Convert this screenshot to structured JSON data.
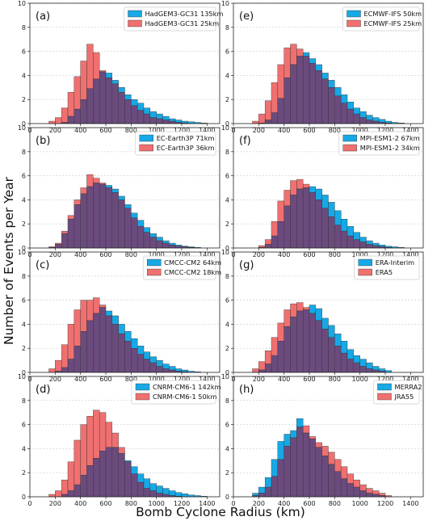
{
  "figure": {
    "xlabel": "Bomb Cyclone Radius (km)",
    "ylabel": "Number of Events per Year"
  },
  "colors": {
    "series1": "#16a9e6",
    "series2": "#f07070",
    "overlap": "#6b4b7e"
  },
  "chart_data": [
    {
      "type": "bar",
      "panel": "(a)",
      "xlim": [
        0,
        1500
      ],
      "ylim": [
        0,
        10
      ],
      "bin_width": 50,
      "grid": true,
      "legend": "top-right",
      "bin_start": [
        150,
        200,
        250,
        300,
        350,
        400,
        450,
        500,
        550,
        600,
        650,
        700,
        750,
        800,
        850,
        900,
        950,
        1000,
        1050,
        1100,
        1150,
        1200,
        1250,
        1300,
        1350,
        1400
      ],
      "xticks": [
        0,
        200,
        400,
        600,
        800,
        1000,
        1200,
        1400
      ],
      "yticks": [
        0,
        2,
        4,
        6,
        8,
        10
      ],
      "series": [
        {
          "name": "HadGEM3-GC31 135km",
          "values": [
            0,
            0,
            0.1,
            0.6,
            1.2,
            2.0,
            2.9,
            3.7,
            4.3,
            4.2,
            3.6,
            3.0,
            2.4,
            2.0,
            1.7,
            1.3,
            1.0,
            0.8,
            0.6,
            0.4,
            0.3,
            0.2,
            0.15,
            0.1,
            0.05,
            0
          ]
        },
        {
          "name": "HadGEM3-GC31 25km",
          "values": [
            0.2,
            0.5,
            1.3,
            2.6,
            3.9,
            5.2,
            6.6,
            5.9,
            4.4,
            3.8,
            3.3,
            2.6,
            2.0,
            1.5,
            1.1,
            0.8,
            0.5,
            0.4,
            0.3,
            0.2,
            0.1,
            0.05,
            0,
            0,
            0,
            0
          ]
        }
      ]
    },
    {
      "type": "bar",
      "panel": "(e)",
      "xlim": [
        0,
        1500
      ],
      "ylim": [
        0,
        10
      ],
      "bin_width": 50,
      "grid": true,
      "legend": "top-right",
      "bin_start": [
        150,
        200,
        250,
        300,
        350,
        400,
        450,
        500,
        550,
        600,
        650,
        700,
        750,
        800,
        850,
        900,
        950,
        1000,
        1050,
        1100,
        1150,
        1200,
        1250,
        1300,
        1350,
        1400
      ],
      "xticks": [
        0,
        200,
        400,
        600,
        800,
        1000,
        1200,
        1400
      ],
      "yticks": [
        0,
        2,
        4,
        6,
        8,
        10
      ],
      "series": [
        {
          "name": "ECMWF-IFS 50km",
          "values": [
            0,
            0.05,
            0.3,
            0.9,
            2.1,
            3.8,
            4.9,
            5.6,
            5.9,
            5.4,
            4.9,
            4.2,
            3.6,
            3.0,
            2.4,
            1.8,
            1.3,
            1.0,
            0.7,
            0.5,
            0.35,
            0.2,
            0.1,
            0.05,
            0,
            0
          ]
        },
        {
          "name": "ECMWF-IFS 25km",
          "values": [
            0.2,
            0.8,
            1.9,
            3.4,
            4.9,
            6.3,
            6.6,
            6.2,
            5.6,
            5.0,
            4.4,
            3.7,
            3.0,
            2.3,
            1.7,
            1.2,
            0.8,
            0.5,
            0.3,
            0.2,
            0.1,
            0.05,
            0,
            0,
            0,
            0
          ]
        }
      ]
    },
    {
      "type": "bar",
      "panel": "(b)",
      "xlim": [
        0,
        1500
      ],
      "ylim": [
        0,
        10
      ],
      "bin_width": 50,
      "grid": true,
      "legend": "top-right",
      "bin_start": [
        150,
        200,
        250,
        300,
        350,
        400,
        450,
        500,
        550,
        600,
        650,
        700,
        750,
        800,
        850,
        900,
        950,
        1000,
        1050,
        1100,
        1150,
        1200,
        1250,
        1300,
        1350,
        1400
      ],
      "xticks": [
        0,
        200,
        400,
        600,
        800,
        1000,
        1200,
        1400
      ],
      "yticks": [
        0,
        2,
        4,
        6,
        8,
        10
      ],
      "series": [
        {
          "name": "EC-Earth3P 71km",
          "values": [
            0.05,
            0.3,
            1.2,
            2.4,
            3.6,
            4.5,
            5.1,
            5.4,
            5.3,
            5.2,
            4.9,
            4.3,
            3.6,
            2.9,
            2.3,
            1.7,
            1.2,
            0.9,
            0.6,
            0.4,
            0.25,
            0.15,
            0.1,
            0.05,
            0,
            0
          ]
        },
        {
          "name": "EC-Earth3P 36km",
          "values": [
            0.1,
            0.4,
            1.4,
            2.7,
            4.0,
            5.0,
            6.1,
            5.8,
            5.4,
            5.0,
            4.6,
            4.0,
            3.3,
            2.5,
            1.8,
            1.3,
            0.9,
            0.6,
            0.4,
            0.25,
            0.15,
            0.1,
            0.05,
            0,
            0,
            0
          ]
        }
      ]
    },
    {
      "type": "bar",
      "panel": "(f)",
      "xlim": [
        0,
        1500
      ],
      "ylim": [
        0,
        10
      ],
      "bin_width": 50,
      "grid": true,
      "legend": "top-right",
      "bin_start": [
        150,
        200,
        250,
        300,
        350,
        400,
        450,
        500,
        550,
        600,
        650,
        700,
        750,
        800,
        850,
        900,
        950,
        1000,
        1050,
        1100,
        1150,
        1200,
        1250,
        1300,
        1350,
        1400
      ],
      "xticks": [
        0,
        200,
        400,
        600,
        800,
        1000,
        1200,
        1400
      ],
      "yticks": [
        0,
        2,
        4,
        6,
        8,
        10
      ],
      "series": [
        {
          "name": "MPI-ESM1-2 67km",
          "values": [
            0,
            0.05,
            0.3,
            1.0,
            2.2,
            3.5,
            4.4,
            4.9,
            5.0,
            5.1,
            4.9,
            4.4,
            3.8,
            3.1,
            2.4,
            1.8,
            1.3,
            0.9,
            0.6,
            0.4,
            0.25,
            0.15,
            0.1,
            0.05,
            0,
            0
          ]
        },
        {
          "name": "MPI-ESM1-2 34km",
          "values": [
            0,
            0.2,
            0.7,
            2.2,
            3.9,
            4.8,
            5.6,
            5.7,
            5.3,
            4.6,
            4.0,
            3.3,
            2.6,
            1.9,
            1.4,
            1.0,
            0.7,
            0.5,
            0.3,
            0.2,
            0.1,
            0.05,
            0,
            0,
            0,
            0
          ]
        }
      ]
    },
    {
      "type": "bar",
      "panel": "(c)",
      "xlim": [
        0,
        1500
      ],
      "ylim": [
        0,
        10
      ],
      "bin_width": 50,
      "grid": true,
      "legend": "top-right",
      "bin_start": [
        150,
        200,
        250,
        300,
        350,
        400,
        450,
        500,
        550,
        600,
        650,
        700,
        750,
        800,
        850,
        900,
        950,
        1000,
        1050,
        1100,
        1150,
        1200,
        1250,
        1300,
        1350,
        1400
      ],
      "xticks": [
        0,
        200,
        400,
        600,
        800,
        1000,
        1200,
        1400
      ],
      "yticks": [
        0,
        2,
        4,
        6,
        8,
        10
      ],
      "series": [
        {
          "name": "CMCC-CM2 64km",
          "values": [
            0,
            0.1,
            0.4,
            1.1,
            2.2,
            3.4,
            4.3,
            4.9,
            5.4,
            5.1,
            4.7,
            4.0,
            3.4,
            2.8,
            2.2,
            1.7,
            1.3,
            1.0,
            0.7,
            0.5,
            0.3,
            0.2,
            0.1,
            0.05,
            0,
            0
          ]
        },
        {
          "name": "CMCC-CM2 18km",
          "values": [
            0.3,
            1.0,
            2.3,
            4.0,
            5.2,
            6.0,
            6.0,
            6.2,
            5.6,
            4.7,
            4.0,
            3.2,
            2.6,
            2.0,
            1.5,
            1.1,
            0.8,
            0.5,
            0.3,
            0.2,
            0.1,
            0.05,
            0,
            0,
            0,
            0
          ]
        }
      ]
    },
    {
      "type": "bar",
      "panel": "(g)",
      "xlim": [
        0,
        1500
      ],
      "ylim": [
        0,
        10
      ],
      "bin_width": 50,
      "grid": true,
      "legend": "top-right",
      "bin_start": [
        150,
        200,
        250,
        300,
        350,
        400,
        450,
        500,
        550,
        600,
        650,
        700,
        750,
        800,
        850,
        900,
        950,
        1000,
        1050,
        1100,
        1150,
        1200,
        1250,
        1300,
        1350,
        1400
      ],
      "xticks": [
        0,
        200,
        400,
        600,
        800,
        1000,
        1200,
        1400
      ],
      "yticks": [
        0,
        2,
        4,
        6,
        8,
        10
      ],
      "series": [
        {
          "name": "ERA-Interim",
          "values": [
            0,
            0.2,
            0.7,
            1.4,
            2.6,
            3.8,
            4.6,
            5.1,
            5.2,
            5.6,
            5.3,
            4.5,
            3.9,
            3.2,
            2.6,
            1.9,
            1.4,
            1.1,
            0.8,
            0.5,
            0.3,
            0.15,
            0,
            0,
            0,
            0
          ]
        },
        {
          "name": "ERA5",
          "values": [
            0.3,
            0.9,
            1.8,
            2.9,
            4.1,
            5.2,
            5.7,
            5.8,
            5.4,
            4.9,
            4.3,
            3.6,
            2.9,
            2.2,
            1.6,
            1.1,
            0.8,
            0.5,
            0.3,
            0.2,
            0.1,
            0,
            0,
            0,
            0,
            0
          ]
        }
      ]
    },
    {
      "type": "bar",
      "panel": "(d)",
      "xlim": [
        0,
        1500
      ],
      "ylim": [
        0,
        10
      ],
      "bin_width": 50,
      "grid": true,
      "legend": "top-right",
      "bin_start": [
        150,
        200,
        250,
        300,
        350,
        400,
        450,
        500,
        550,
        600,
        650,
        700,
        750,
        800,
        850,
        900,
        950,
        1000,
        1050,
        1100,
        1150,
        1200,
        1250,
        1300,
        1350,
        1400
      ],
      "xticks": [
        0,
        200,
        400,
        600,
        800,
        1000,
        1200,
        1400
      ],
      "yticks": [
        0,
        2,
        4,
        6,
        8,
        10
      ],
      "series": [
        {
          "name": "CNRM-CM6-1 142km",
          "values": [
            0,
            0,
            0.2,
            0.5,
            1.0,
            1.8,
            2.6,
            3.2,
            3.8,
            4.1,
            4.1,
            3.6,
            3.0,
            2.5,
            1.9,
            1.5,
            1.1,
            0.9,
            0.7,
            0.5,
            0.35,
            0.25,
            0.15,
            0.1,
            0.05,
            0
          ]
        },
        {
          "name": "CNRM-CM6-1 50km",
          "values": [
            0.2,
            0.5,
            1.4,
            2.9,
            4.7,
            6.0,
            6.7,
            7.2,
            7.0,
            6.2,
            5.3,
            4.1,
            2.9,
            1.9,
            1.2,
            0.7,
            0.5,
            0.3,
            0.2,
            0.1,
            0.05,
            0,
            0,
            0,
            0,
            0
          ]
        }
      ]
    },
    {
      "type": "bar",
      "panel": "(h)",
      "xlim": [
        0,
        1500
      ],
      "ylim": [
        0,
        10
      ],
      "bin_width": 50,
      "grid": true,
      "legend": "top-right",
      "bin_start": [
        150,
        200,
        250,
        300,
        350,
        400,
        450,
        500,
        550,
        600,
        650,
        700,
        750,
        800,
        850,
        900,
        950,
        1000,
        1050,
        1100,
        1150,
        1200,
        1250,
        1300,
        1350,
        1400
      ],
      "xticks": [
        0,
        200,
        400,
        600,
        800,
        1000,
        1200,
        1400
      ],
      "yticks": [
        0,
        2,
        4,
        6,
        8,
        10
      ],
      "series": [
        {
          "name": "MERRA2",
          "values": [
            0.3,
            0.8,
            1.6,
            3.1,
            4.6,
            5.2,
            5.5,
            6.5,
            5.3,
            4.8,
            4.1,
            3.4,
            2.7,
            2.1,
            1.5,
            1.1,
            0.8,
            0.5,
            0.3,
            0.2,
            0.1,
            0,
            0,
            0,
            0,
            0
          ]
        },
        {
          "name": "JRA55",
          "values": [
            0.1,
            0.3,
            0.8,
            1.7,
            3.1,
            4.2,
            4.9,
            5.8,
            5.9,
            5.0,
            4.5,
            4.2,
            3.7,
            3.1,
            2.5,
            1.9,
            1.4,
            1.0,
            0.7,
            0.5,
            0.3,
            0.1,
            0,
            0,
            0,
            0
          ]
        }
      ]
    }
  ]
}
